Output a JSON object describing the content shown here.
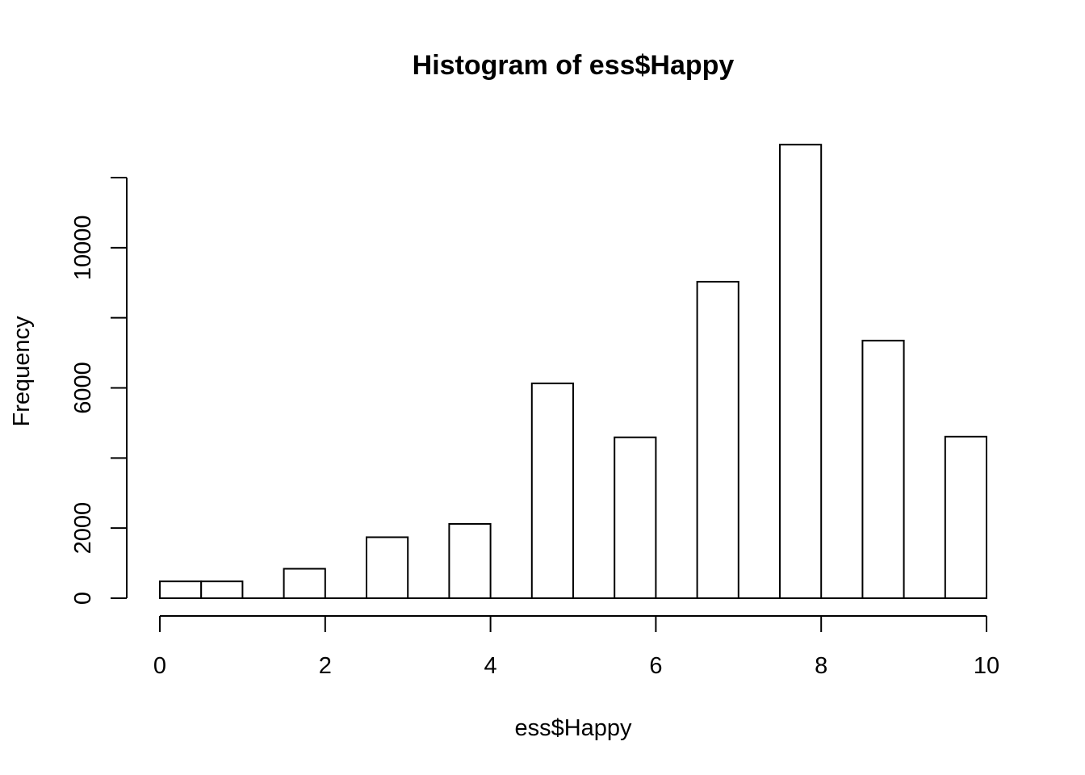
{
  "chart_data": {
    "type": "bar",
    "title": "Histogram of ess$Happy",
    "xlabel": "ess$Happy",
    "ylabel": "Frequency",
    "xlim": [
      0,
      10
    ],
    "ylim": [
      0,
      12000
    ],
    "x_ticks": [
      0,
      2,
      4,
      6,
      8,
      10
    ],
    "y_ticks": [
      0,
      2000,
      4000,
      6000,
      8000,
      10000,
      12000
    ],
    "y_tick_labels_shown": [
      0,
      2000,
      6000,
      10000
    ],
    "bins": [
      {
        "from": 0.0,
        "to": 0.5,
        "count": 480
      },
      {
        "from": 0.5,
        "to": 1.0,
        "count": 480
      },
      {
        "from": 1.5,
        "to": 2.0,
        "count": 840
      },
      {
        "from": 2.5,
        "to": 3.0,
        "count": 1740
      },
      {
        "from": 3.5,
        "to": 4.0,
        "count": 2120
      },
      {
        "from": 4.5,
        "to": 5.0,
        "count": 6130
      },
      {
        "from": 5.5,
        "to": 6.0,
        "count": 4590
      },
      {
        "from": 6.5,
        "to": 7.0,
        "count": 9030
      },
      {
        "from": 7.5,
        "to": 8.0,
        "count": 12940
      },
      {
        "from": 8.5,
        "to": 9.0,
        "count": 7350
      },
      {
        "from": 9.5,
        "to": 10.0,
        "count": 4610
      }
    ],
    "bar_fill": "#ffffff",
    "bar_stroke": "#000000",
    "grid": false,
    "legend": "none"
  }
}
